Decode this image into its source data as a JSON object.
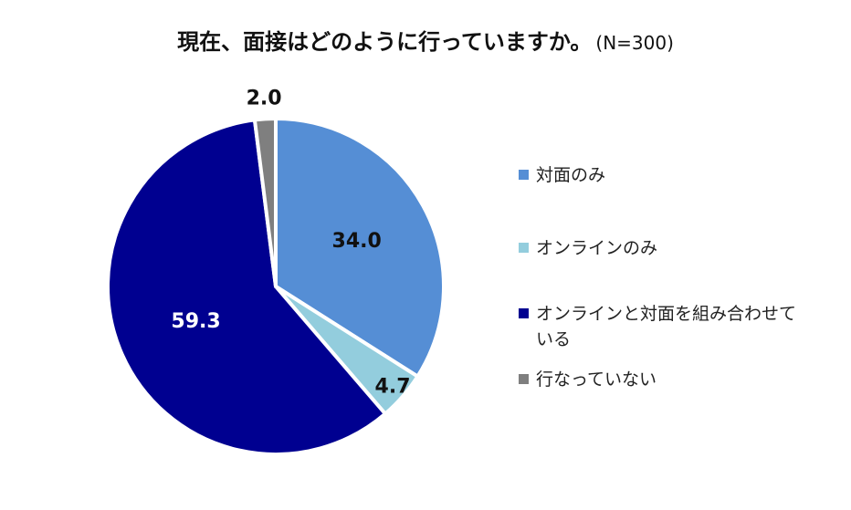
{
  "chart_data": {
    "type": "pie",
    "title": "現在、面接はどのように行っていますか。",
    "subtitle": "(N=300)",
    "start_angle_deg": 0,
    "direction": "clockwise",
    "slices": [
      {
        "name": "対面のみ",
        "value": 34.0,
        "label": "34.0",
        "color": "#558ed5",
        "label_color": "#111111"
      },
      {
        "name": "オンラインのみ",
        "value": 4.7,
        "label": "4.7",
        "color": "#93cddd",
        "label_color": "#111111"
      },
      {
        "name": "オンラインと対面を組み合わせている",
        "value": 59.3,
        "label": "59.3",
        "color": "#000090",
        "label_color": "#ffffff"
      },
      {
        "name": "行なっていない",
        "value": 2.0,
        "label": "2.0",
        "color": "#7f7f7f",
        "label_color": "#111111"
      }
    ],
    "legend_position": "right"
  }
}
